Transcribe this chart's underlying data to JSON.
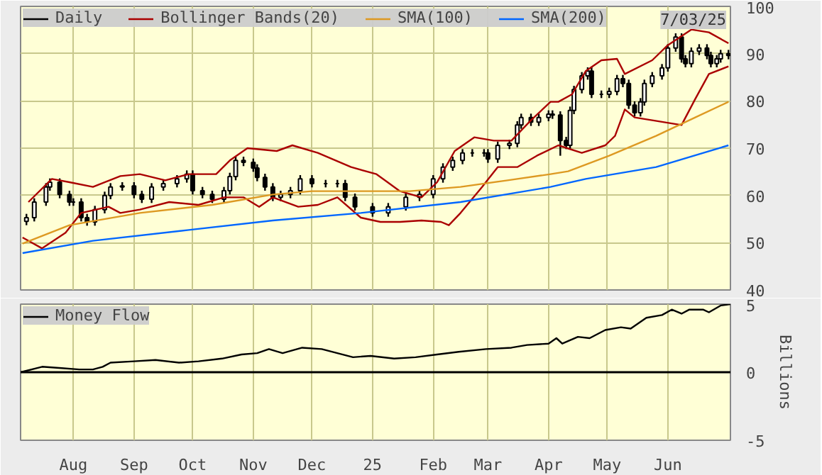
{
  "chart_data": [
    {
      "type": "candlestick",
      "title": "Daily",
      "annotations": [
        "7/03/25"
      ],
      "legend": "top",
      "grid": true,
      "tick_labels": "y",
      "xlim": [
        "2024-07-05",
        "2025-07-03"
      ],
      "xticks": [
        {
          "value": "2024-08-01",
          "label": null
        },
        {
          "value": "2024-09-01",
          "label": null
        },
        {
          "value": "2024-10-01",
          "label": null
        },
        {
          "value": "2024-11-01",
          "label": null
        },
        {
          "value": "2024-12-01",
          "label": null
        },
        {
          "value": "2025-01-01",
          "label": null
        },
        {
          "value": "2025-02-01",
          "label": null
        },
        {
          "value": "2025-03-01",
          "label": null
        },
        {
          "value": "2025-04-01",
          "label": null
        },
        {
          "value": "2025-05-01",
          "label": null
        },
        {
          "value": "2025-06-01",
          "label": null
        }
      ],
      "ylim": [
        40,
        100
      ],
      "yticks": [
        40,
        50,
        60,
        70,
        80,
        90,
        100
      ],
      "x": [
        "2024-07-08",
        "2024-07-12",
        "2024-07-18",
        "2024-07-20",
        "2024-07-25",
        "2024-07-30",
        "2024-08-01",
        "2024-08-05",
        "2024-08-08",
        "2024-08-12",
        "2024-08-17",
        "2024-08-20",
        "2024-08-26",
        "2024-09-01",
        "2024-09-05",
        "2024-09-10",
        "2024-09-16",
        "2024-09-23",
        "2024-09-28",
        "2024-10-01",
        "2024-10-06",
        "2024-10-11",
        "2024-10-17",
        "2024-10-20",
        "2024-10-23",
        "2024-10-27",
        "2024-11-01",
        "2024-11-03",
        "2024-11-07",
        "2024-11-11",
        "2024-11-15",
        "2024-11-20",
        "2024-11-25",
        "2024-12-01",
        "2024-12-08",
        "2024-12-14",
        "2024-12-18",
        "2024-12-23",
        "2025-01-01",
        "2025-01-09",
        "2025-01-18",
        "2025-01-25",
        "2025-02-01",
        "2025-02-06",
        "2025-02-11",
        "2025-02-16",
        "2025-02-21",
        "2025-02-27",
        "2025-03-01",
        "2025-03-06",
        "2025-03-12",
        "2025-03-16",
        "2025-03-18",
        "2025-03-23",
        "2025-03-27",
        "2025-04-01",
        "2025-04-03",
        "2025-04-07",
        "2025-04-10",
        "2025-04-12",
        "2025-04-14",
        "2025-04-18",
        "2025-04-21",
        "2025-04-23",
        "2025-04-28",
        "2025-05-02",
        "2025-05-06",
        "2025-05-09",
        "2025-05-12",
        "2025-05-15",
        "2025-05-18",
        "2025-05-20",
        "2025-05-24",
        "2025-05-29",
        "2025-06-01",
        "2025-06-05",
        "2025-06-08",
        "2025-06-10",
        "2025-06-13",
        "2025-06-17",
        "2025-06-21",
        "2025-06-23",
        "2025-06-26",
        "2025-06-28",
        "2025-07-02"
      ],
      "ohlc": [
        [
          54.5,
          56.1,
          53.7,
          55.3
        ],
        [
          55.3,
          59.4,
          54.5,
          58.6
        ],
        [
          58.6,
          62.6,
          57.8,
          61.8
        ],
        [
          61.8,
          63.6,
          61.0,
          62.8
        ],
        [
          62.8,
          63.6,
          59.4,
          60.2
        ],
        [
          60.2,
          61.0,
          57.8,
          58.6
        ],
        [
          58.6,
          59.4,
          57.8,
          58.6
        ],
        [
          58.6,
          59.4,
          54.5,
          55.3
        ],
        [
          55.3,
          56.1,
          53.6,
          54.4
        ],
        [
          54.4,
          57.8,
          53.6,
          57.0
        ],
        [
          57.0,
          60.8,
          56.2,
          60.0
        ],
        [
          60.0,
          62.6,
          59.2,
          61.8
        ],
        [
          61.8,
          62.8,
          61.0,
          62.0
        ],
        [
          62.0,
          62.8,
          59.4,
          60.2
        ],
        [
          60.2,
          61.0,
          58.4,
          59.2
        ],
        [
          59.2,
          62.6,
          58.4,
          61.8
        ],
        [
          61.8,
          63.3,
          61.0,
          62.5
        ],
        [
          62.5,
          64.3,
          61.7,
          63.5
        ],
        [
          63.5,
          65.3,
          62.7,
          64.5
        ],
        [
          64.5,
          65.3,
          60.2,
          61.0
        ],
        [
          61.0,
          61.8,
          59.4,
          60.2
        ],
        [
          60.2,
          61.0,
          58.4,
          59.2
        ],
        [
          59.2,
          61.8,
          58.4,
          61.0
        ],
        [
          61.0,
          64.8,
          60.2,
          64.0
        ],
        [
          64.0,
          68.2,
          63.2,
          67.4
        ],
        [
          67.4,
          68.2,
          66.2,
          67.0
        ],
        [
          67.0,
          67.8,
          65.0,
          65.8
        ],
        [
          65.8,
          66.6,
          63.0,
          63.8
        ],
        [
          63.8,
          64.6,
          61.0,
          61.8
        ],
        [
          61.8,
          62.6,
          58.8,
          59.6
        ],
        [
          59.6,
          61.0,
          58.8,
          60.2
        ],
        [
          60.2,
          61.8,
          59.4,
          61.0
        ],
        [
          61.0,
          64.3,
          60.2,
          63.5
        ],
        [
          63.5,
          64.3,
          61.7,
          62.5
        ],
        [
          62.5,
          63.3,
          61.7,
          62.5
        ],
        [
          62.5,
          63.3,
          61.7,
          62.5
        ],
        [
          62.5,
          63.3,
          58.8,
          59.6
        ],
        [
          59.6,
          60.4,
          56.8,
          57.6
        ],
        [
          57.6,
          58.4,
          55.5,
          56.3
        ],
        [
          56.3,
          58.4,
          55.5,
          57.6
        ],
        [
          57.6,
          60.4,
          56.8,
          59.6
        ],
        [
          59.6,
          61.0,
          58.8,
          60.2
        ],
        [
          60.2,
          64.3,
          59.4,
          63.5
        ],
        [
          63.5,
          66.8,
          62.7,
          66.0
        ],
        [
          66.0,
          68.2,
          65.2,
          67.4
        ],
        [
          67.4,
          69.8,
          66.6,
          69.0
        ],
        [
          69.0,
          69.8,
          68.2,
          69.0
        ],
        [
          69.0,
          69.8,
          68.2,
          69.0
        ],
        [
          69.0,
          69.8,
          66.9,
          67.7
        ],
        [
          67.7,
          71.4,
          66.9,
          70.6
        ],
        [
          70.6,
          71.8,
          69.8,
          71.0
        ],
        [
          71.0,
          75.7,
          70.2,
          74.9
        ],
        [
          74.9,
          77.3,
          74.1,
          76.5
        ],
        [
          76.5,
          77.3,
          74.7,
          75.5
        ],
        [
          75.5,
          77.3,
          74.7,
          76.5
        ],
        [
          76.5,
          78.0,
          75.7,
          77.2
        ],
        [
          77.2,
          78.0,
          76.2,
          77.0
        ],
        [
          77.0,
          77.8,
          68.4,
          71.6
        ],
        [
          71.6,
          72.4,
          69.8,
          70.6
        ],
        [
          70.6,
          78.8,
          69.8,
          78.0
        ],
        [
          78.0,
          83.2,
          77.2,
          82.4
        ],
        [
          82.4,
          86.1,
          81.6,
          85.3
        ],
        [
          85.3,
          87.1,
          84.5,
          86.3
        ],
        [
          86.3,
          87.1,
          80.6,
          81.4
        ],
        [
          81.4,
          82.2,
          80.6,
          81.4
        ],
        [
          81.4,
          82.8,
          80.6,
          82.0
        ],
        [
          82.0,
          85.5,
          81.2,
          84.7
        ],
        [
          84.7,
          85.5,
          82.9,
          83.7
        ],
        [
          83.7,
          84.5,
          78.3,
          79.1
        ],
        [
          79.1,
          79.9,
          76.7,
          77.5
        ],
        [
          77.5,
          80.6,
          76.7,
          79.8
        ],
        [
          79.8,
          84.5,
          79.0,
          83.7
        ],
        [
          83.7,
          86.1,
          82.9,
          85.3
        ],
        [
          85.3,
          87.8,
          84.5,
          87.0
        ],
        [
          87.0,
          92.0,
          86.2,
          91.2
        ],
        [
          91.2,
          94.3,
          90.4,
          93.5
        ],
        [
          93.5,
          94.3,
          88.1,
          88.9
        ],
        [
          88.9,
          89.7,
          87.1,
          87.9
        ],
        [
          87.9,
          91.3,
          87.1,
          90.5
        ],
        [
          90.5,
          92.0,
          89.7,
          91.2
        ],
        [
          91.2,
          92.0,
          88.8,
          89.6
        ],
        [
          89.6,
          90.4,
          87.1,
          87.9
        ],
        [
          87.9,
          89.7,
          87.1,
          88.9
        ],
        [
          88.9,
          90.8,
          88.1,
          90.0
        ],
        [
          90.0,
          90.8,
          88.8,
          89.6
        ]
      ],
      "series": [
        {
          "type": "line",
          "name": "Bollinger Bands(20)",
          "color": "#aa0000",
          "x": [
            "2024-07-09",
            "2024-07-21",
            "2024-07-30",
            "2024-08-11",
            "2024-08-25",
            "2024-09-04",
            "2024-09-17",
            "2024-09-29",
            "2024-10-13",
            "2024-10-20",
            "2024-10-29",
            "2024-11-13",
            "2024-11-21",
            "2024-12-04",
            "2024-12-21",
            "2025-01-03",
            "2025-01-15",
            "2025-01-26",
            "2025-02-03",
            "2025-02-12",
            "2025-02-22",
            "2025-03-04",
            "2025-03-13",
            "2025-03-23",
            "2025-04-02",
            "2025-04-06",
            "2025-04-13",
            "2025-04-20",
            "2025-04-28",
            "2025-05-06",
            "2025-05-10",
            "2025-05-24",
            "2025-06-01",
            "2025-06-13",
            "2025-06-22",
            "2025-07-02"
          ],
          "values": [
            58.6,
            63.5,
            62.8,
            61.8,
            64.1,
            64.5,
            63.2,
            64.5,
            64.5,
            67.4,
            70.0,
            69.4,
            70.6,
            69.0,
            66.0,
            64.5,
            60.9,
            59.6,
            62.8,
            69.4,
            72.3,
            71.6,
            71.6,
            75.9,
            79.8,
            79.8,
            81.4,
            86.3,
            88.6,
            88.9,
            85.7,
            88.6,
            91.8,
            95.1,
            94.5,
            92.2
          ]
        },
        {
          "type": "line",
          "color": "#aa0000",
          "x": [
            "2024-07-06",
            "2024-07-16",
            "2024-07-28",
            "2024-08-05",
            "2024-08-19",
            "2024-08-25",
            "2024-09-04",
            "2024-09-19",
            "2024-10-04",
            "2024-10-17",
            "2024-10-27",
            "2024-11-04",
            "2024-11-11",
            "2024-11-24",
            "2024-12-04",
            "2024-12-14",
            "2024-12-26",
            "2025-01-05",
            "2025-01-15",
            "2025-01-26",
            "2025-02-05",
            "2025-02-09",
            "2025-02-15",
            "2025-02-26",
            "2025-03-06",
            "2025-03-16",
            "2025-03-26",
            "2025-04-06",
            "2025-04-18",
            "2025-04-30",
            "2025-05-05",
            "2025-05-10",
            "2025-05-15",
            "2025-05-24",
            "2025-06-08",
            "2025-06-15",
            "2025-06-22",
            "2025-07-02"
          ],
          "values": [
            51.1,
            48.8,
            52.1,
            56.3,
            57.6,
            56.3,
            57.0,
            58.6,
            58.0,
            59.6,
            59.6,
            57.6,
            59.6,
            57.6,
            58.0,
            59.6,
            55.3,
            54.4,
            54.4,
            54.7,
            54.4,
            53.7,
            56.3,
            61.8,
            66.0,
            66.0,
            68.4,
            70.6,
            69.0,
            70.6,
            72.6,
            78.2,
            76.5,
            75.9,
            74.9,
            80.4,
            85.7,
            87.3
          ]
        },
        {
          "type": "line",
          "name": "SMA(100)",
          "color": "#dd9922",
          "x": [
            "2024-07-06",
            "2024-07-30",
            "2024-09-04",
            "2024-10-11",
            "2024-11-11",
            "2024-12-01",
            "2024-12-26",
            "2025-01-20",
            "2025-02-15",
            "2025-03-11",
            "2025-04-02",
            "2025-04-11",
            "2025-05-02",
            "2025-05-26",
            "2025-06-15",
            "2025-07-02"
          ],
          "values": [
            49.8,
            53.7,
            56.3,
            58.0,
            60.2,
            60.9,
            60.9,
            60.9,
            61.8,
            63.2,
            64.5,
            65.1,
            68.4,
            72.6,
            76.5,
            79.8
          ]
        },
        {
          "type": "line",
          "name": "SMA(200)",
          "color": "#0066ff",
          "x": [
            "2024-07-06",
            "2024-08-11",
            "2024-09-29",
            "2024-11-11",
            "2024-12-26",
            "2025-02-15",
            "2025-04-02",
            "2025-04-20",
            "2025-05-26",
            "2025-07-02"
          ],
          "values": [
            47.8,
            50.4,
            52.7,
            54.7,
            56.3,
            58.6,
            61.8,
            63.5,
            66.0,
            70.6
          ]
        }
      ]
    },
    {
      "type": "line",
      "ylabel": "Billions",
      "legend": "top",
      "grid": "x",
      "xlim": [
        "2024-07-05",
        "2025-07-03"
      ],
      "xticks": [
        {
          "value": "2024-08-01",
          "label": "Aug"
        },
        {
          "value": "2024-09-01",
          "label": "Sep"
        },
        {
          "value": "2024-10-01",
          "label": "Oct"
        },
        {
          "value": "2024-11-01",
          "label": "Nov"
        },
        {
          "value": "2024-12-01",
          "label": "Dec"
        },
        {
          "value": "2025-01-01",
          "label": "25"
        },
        {
          "value": "2025-02-01",
          "label": "Feb"
        },
        {
          "value": "2025-03-01",
          "label": "Mar"
        },
        {
          "value": "2025-04-01",
          "label": "Apr"
        },
        {
          "value": "2025-05-01",
          "label": "May"
        },
        {
          "value": "2025-06-01",
          "label": "Jun"
        }
      ],
      "ylim": [
        -5,
        5
      ],
      "yticks": [
        -5,
        0,
        5
      ],
      "ref_lines": [
        {
          "axis": "y",
          "value": 0,
          "color": "#000000"
        }
      ],
      "series": [
        {
          "name": "Money Flow",
          "color": "#000000",
          "x": [
            "2024-07-05",
            "2024-07-16",
            "2024-07-26",
            "2024-08-04",
            "2024-08-11",
            "2024-08-16",
            "2024-08-20",
            "2024-09-01",
            "2024-09-12",
            "2024-09-24",
            "2024-10-04",
            "2024-10-16",
            "2024-10-26",
            "2024-11-03",
            "2024-11-09",
            "2024-11-16",
            "2024-11-26",
            "2024-12-06",
            "2024-12-14",
            "2024-12-22",
            "2024-12-31",
            "2025-01-12",
            "2025-01-23",
            "2025-02-03",
            "2025-02-14",
            "2025-02-28",
            "2025-03-13",
            "2025-03-21",
            "2025-04-01",
            "2025-04-05",
            "2025-04-08",
            "2025-04-16",
            "2025-04-22",
            "2025-04-30",
            "2025-05-08",
            "2025-05-13",
            "2025-05-21",
            "2025-05-29",
            "2025-06-03",
            "2025-06-08",
            "2025-06-12",
            "2025-06-19",
            "2025-06-22",
            "2025-06-28",
            "2025-07-03"
          ],
          "values": [
            0,
            0.4,
            0.3,
            0.2,
            0.2,
            0.4,
            0.7,
            0.8,
            0.9,
            0.7,
            0.8,
            1.0,
            1.3,
            1.4,
            1.7,
            1.4,
            1.8,
            1.7,
            1.4,
            1.1,
            1.2,
            1.0,
            1.1,
            1.3,
            1.5,
            1.7,
            1.8,
            2.0,
            2.1,
            2.5,
            2.1,
            2.6,
            2.5,
            3.1,
            3.3,
            3.2,
            4.0,
            4.2,
            4.6,
            4.3,
            4.6,
            4.6,
            4.4,
            4.9,
            5.0
          ]
        }
      ]
    }
  ]
}
